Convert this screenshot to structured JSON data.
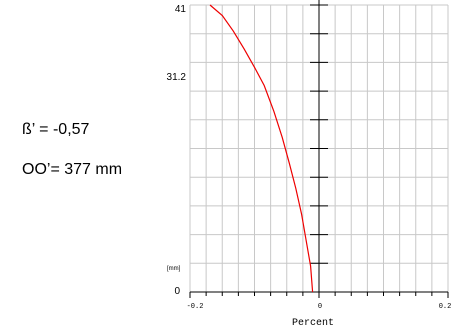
{
  "parameters": {
    "beta_prime": "ß’ = -0,57",
    "oo_prime": "OO’= 377 mm"
  },
  "chart_data": {
    "type": "line",
    "title": "",
    "xlabel": "Percent",
    "ylabel": "",
    "y_unit_label": "[mm]",
    "xlim": [
      -0.2,
      0.2
    ],
    "ylim": [
      0,
      41
    ],
    "x_tick_labels": [
      "-0.2",
      "0",
      "0.2"
    ],
    "y_tick_labels": [
      "0",
      "31.2",
      "41"
    ],
    "grid": true,
    "colors": {
      "line": "#ee0000",
      "grid": "#c8c8c8",
      "axis": "#000000"
    },
    "series": [
      {
        "x": [
          -0.01,
          -0.013,
          -0.02,
          -0.027,
          -0.036,
          -0.046,
          -0.057,
          -0.07,
          -0.085,
          -0.1,
          -0.116,
          -0.133,
          -0.15,
          -0.169
        ],
        "y": [
          0,
          3.7,
          7.4,
          11.1,
          14.8,
          18.4,
          22.1,
          25.8,
          29.5,
          32.1,
          34.7,
          37.3,
          39.5,
          41
        ]
      }
    ]
  }
}
